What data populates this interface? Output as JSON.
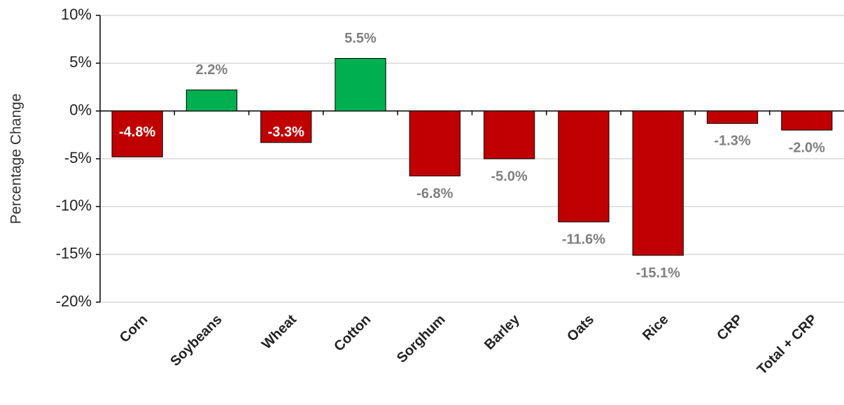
{
  "chart_data": {
    "type": "bar",
    "y_label": "Percentage Change",
    "categories": [
      "Corn",
      "Soybeans",
      "Wheat",
      "Cotton",
      "Sorghum",
      "Barley",
      "Oats",
      "Rice",
      "CRP",
      "Total + CRP"
    ],
    "values": [
      -4.8,
      2.2,
      -3.3,
      5.5,
      -6.8,
      -5.0,
      -11.6,
      -15.1,
      -1.3,
      -2.0
    ],
    "value_labels": [
      "-4.8%",
      "2.2%",
      "-3.3%",
      "5.5%",
      "-6.8%",
      "-5.0%",
      "-11.6%",
      "-15.1%",
      "-1.3%",
      "-2.0%"
    ],
    "colors": [
      "#c00000",
      "#00b050",
      "#c00000",
      "#00b050",
      "#c00000",
      "#c00000",
      "#c00000",
      "#c00000",
      "#c00000",
      "#c00000"
    ],
    "value_label_colors": [
      "#ffffff",
      "#7f7f7f",
      "#ffffff",
      "#7f7f7f",
      "#7f7f7f",
      "#7f7f7f",
      "#7f7f7f",
      "#7f7f7f",
      "#7f7f7f",
      "#7f7f7f"
    ],
    "ylim": [
      -20,
      10
    ],
    "yticks": [
      {
        "value": -20,
        "label": "-20%"
      },
      {
        "value": -15,
        "label": "-15%"
      },
      {
        "value": -10,
        "label": "-10%"
      },
      {
        "value": -5,
        "label": "-5%"
      },
      {
        "value": 0,
        "label": "0%"
      },
      {
        "value": 5,
        "label": "5%"
      },
      {
        "value": 10,
        "label": "10%"
      }
    ],
    "grid": true
  }
}
